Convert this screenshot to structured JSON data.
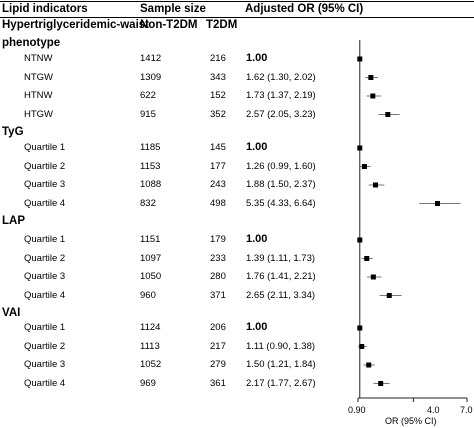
{
  "headers": {
    "indicator": "Lipid indicators",
    "sample_size": "Sample size",
    "non_t2dm": "Non-T2DM",
    "t2dm": "T2DM",
    "adjusted_or": "Adjusted OR (95% CI)",
    "phenotype_line1": "Hypertriglyceridemic-waist",
    "phenotype_line2": "phenotype"
  },
  "axis": {
    "ticks": [
      "0.90",
      "4.0",
      "7.0"
    ],
    "label": "OR (95% CI)"
  },
  "groups": [
    {
      "name": "",
      "rows": [
        {
          "label": "NTNW",
          "non": "1412",
          "t2": "216",
          "or": "1.00"
        },
        {
          "label": "NTGW",
          "non": "1309",
          "t2": "343",
          "or": "1.62 (1.30, 2.02)"
        },
        {
          "label": "HTNW",
          "non": "622",
          "t2": "152",
          "or": "1.73 (1.37, 2.19)"
        },
        {
          "label": "HTGW",
          "non": "915",
          "t2": "352",
          "or": "2.57 (2.05, 3.23)"
        }
      ]
    },
    {
      "name": "TyG",
      "rows": [
        {
          "label": "Quartile 1",
          "non": "1185",
          "t2": "145",
          "or": "1.00"
        },
        {
          "label": "Quartile 2",
          "non": "1153",
          "t2": "177",
          "or": "1.26 (0.99, 1.60)"
        },
        {
          "label": "Quartile 3",
          "non": "1088",
          "t2": "243",
          "or": "1.88 (1.50, 2.37)"
        },
        {
          "label": "Quartile 4",
          "non": "832",
          "t2": "498",
          "or": "5.35 (4.33, 6.64)"
        }
      ]
    },
    {
      "name": "LAP",
      "rows": [
        {
          "label": "Quartile 1",
          "non": "1151",
          "t2": "179",
          "or": "1.00"
        },
        {
          "label": "Quartile 2",
          "non": "1097",
          "t2": "233",
          "or": "1.39 (1.11, 1.73)"
        },
        {
          "label": "Quartile 3",
          "non": "1050",
          "t2": "280",
          "or": "1.76 (1.41, 2.21)"
        },
        {
          "label": "Quartile 4",
          "non": "960",
          "t2": "371",
          "or": "2.65 (2.11, 3.34)"
        }
      ]
    },
    {
      "name": "VAI",
      "rows": [
        {
          "label": "Quartile 1",
          "non": "1124",
          "t2": "206",
          "or": "1.00"
        },
        {
          "label": "Quartile 2",
          "non": "1113",
          "t2": "217",
          "or": "1.11 (0.90, 1.38)"
        },
        {
          "label": "Quartile 3",
          "non": "1052",
          "t2": "279",
          "or": "1.50 (1.21, 1.84)"
        },
        {
          "label": "Quartile 4",
          "non": "969",
          "t2": "361",
          "or": "2.17 (1.77, 2.67)"
        }
      ]
    }
  ],
  "chart_data": {
    "type": "scatter",
    "xlabel": "OR (95% CI)",
    "xlim": [
      0.9,
      7.0
    ],
    "xticks": [
      0.9,
      4.0,
      7.0
    ],
    "reference_line": 1.0,
    "series": [
      {
        "points": [
          {
            "row": "NTNW",
            "or": 1.0,
            "lo": 1.0,
            "hi": 1.0
          },
          {
            "row": "NTGW",
            "or": 1.62,
            "lo": 1.3,
            "hi": 2.02
          },
          {
            "row": "HTNW",
            "or": 1.73,
            "lo": 1.37,
            "hi": 2.19
          },
          {
            "row": "HTGW",
            "or": 2.57,
            "lo": 2.05,
            "hi": 3.23
          },
          {
            "row": "TyG Quartile 1",
            "or": 1.0,
            "lo": 1.0,
            "hi": 1.0
          },
          {
            "row": "TyG Quartile 2",
            "or": 1.26,
            "lo": 0.99,
            "hi": 1.6
          },
          {
            "row": "TyG Quartile 3",
            "or": 1.88,
            "lo": 1.5,
            "hi": 2.37
          },
          {
            "row": "TyG Quartile 4",
            "or": 5.35,
            "lo": 4.33,
            "hi": 6.64
          },
          {
            "row": "LAP Quartile 1",
            "or": 1.0,
            "lo": 1.0,
            "hi": 1.0
          },
          {
            "row": "LAP Quartile 2",
            "or": 1.39,
            "lo": 1.11,
            "hi": 1.73
          },
          {
            "row": "LAP Quartile 3",
            "or": 1.76,
            "lo": 1.41,
            "hi": 2.21
          },
          {
            "row": "LAP Quartile 4",
            "or": 2.65,
            "lo": 2.11,
            "hi": 3.34
          },
          {
            "row": "VAI Quartile 1",
            "or": 1.0,
            "lo": 1.0,
            "hi": 1.0
          },
          {
            "row": "VAI Quartile 2",
            "or": 1.11,
            "lo": 0.9,
            "hi": 1.38
          },
          {
            "row": "VAI Quartile 3",
            "or": 1.5,
            "lo": 1.21,
            "hi": 1.84
          },
          {
            "row": "VAI Quartile 4",
            "or": 2.17,
            "lo": 1.77,
            "hi": 2.67
          }
        ]
      }
    ]
  }
}
